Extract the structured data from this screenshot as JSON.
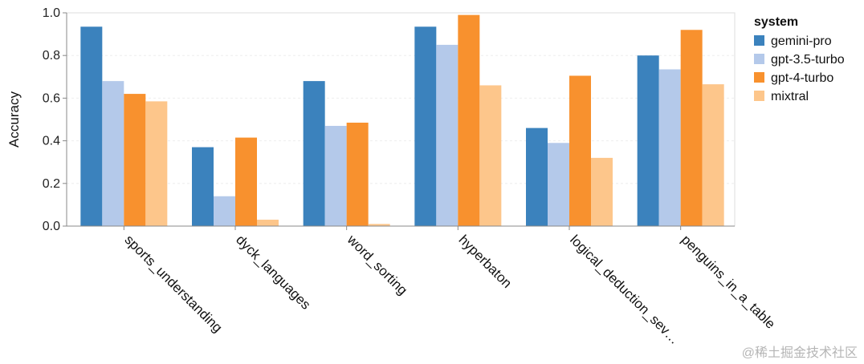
{
  "chart_data": {
    "type": "bar",
    "ylabel": "Accuracy",
    "ylim": [
      0,
      1.0
    ],
    "y_ticks": [
      "0.0",
      "0.2",
      "0.4",
      "0.6",
      "0.8",
      "1.0"
    ],
    "grid": true,
    "legend_title": "system",
    "legend_position": "right",
    "categories": [
      "sports_understanding",
      "dyck_languages",
      "word_sorting",
      "hyperbaton",
      "logical_deduction_sev…",
      "penguins_in_a_table"
    ],
    "series": [
      {
        "name": "gemini-pro",
        "color": "#3b82bd",
        "values": [
          0.935,
          0.37,
          0.68,
          0.935,
          0.46,
          0.8
        ]
      },
      {
        "name": "gpt-3.5-turbo",
        "color": "#b4c9ea",
        "values": [
          0.68,
          0.14,
          0.47,
          0.85,
          0.39,
          0.735
        ]
      },
      {
        "name": "gpt-4-turbo",
        "color": "#f8912e",
        "values": [
          0.62,
          0.415,
          0.485,
          0.99,
          0.705,
          0.92
        ]
      },
      {
        "name": "mixtral",
        "color": "#fdc68b",
        "values": [
          0.585,
          0.03,
          0.01,
          0.66,
          0.32,
          0.665
        ]
      }
    ]
  },
  "watermark": "@稀土掘金技术社区"
}
